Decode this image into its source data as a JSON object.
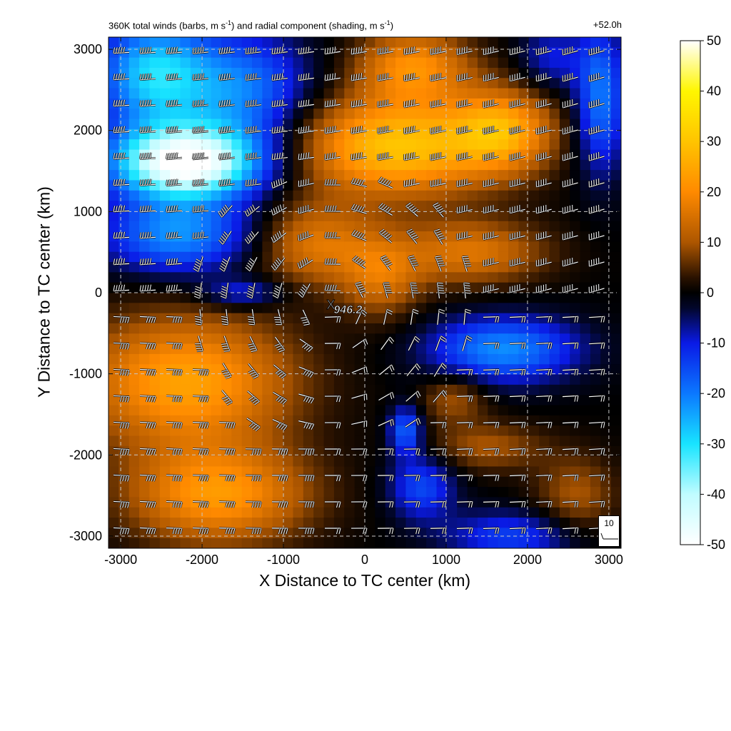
{
  "figure": {
    "title_left_parts": [
      "360K total winds (barbs, m s",
      "-1",
      ") and radial component (shading, m s",
      "-1",
      ")"
    ],
    "title_right": "+52.0h",
    "center_marker": "X",
    "center_label": "946.2",
    "reference_barb_label": "10"
  },
  "chart_data": {
    "type": "heatmap",
    "xlabel": "X Distance to TC center (km)",
    "ylabel": "Y Distance to TC center (km)",
    "xlim": [
      -3150,
      3150
    ],
    "ylim": [
      -3150,
      3150
    ],
    "xticks": [
      -3000,
      -2000,
      -1000,
      0,
      1000,
      2000,
      3000
    ],
    "yticks": [
      -3000,
      -2000,
      -1000,
      0,
      1000,
      2000,
      3000
    ],
    "grid": true,
    "colorbar": {
      "range": [
        -50,
        50
      ],
      "ticks": [
        50,
        40,
        30,
        20,
        10,
        0,
        -10,
        -20,
        -30,
        -40,
        -50
      ],
      "colors": [
        {
          "v": -50,
          "c": "#ffffff"
        },
        {
          "v": -40,
          "c": "#c0fcff"
        },
        {
          "v": -30,
          "c": "#18e4ff"
        },
        {
          "v": -20,
          "c": "#0b78ff"
        },
        {
          "v": -10,
          "c": "#0a1ae6"
        },
        {
          "v": -3,
          "c": "#02062a"
        },
        {
          "v": 0,
          "c": "#000000"
        },
        {
          "v": 3,
          "c": "#2a1200"
        },
        {
          "v": 10,
          "c": "#ad5600"
        },
        {
          "v": 20,
          "c": "#ff8a00"
        },
        {
          "v": 30,
          "c": "#ffc400"
        },
        {
          "v": 40,
          "c": "#fff600"
        },
        {
          "v": 50,
          "c": "#ffffff"
        }
      ]
    },
    "storm_center": {
      "x": -400,
      "y": -150,
      "label": "946.2"
    },
    "radial_wind_features": [
      {
        "x": -2200,
        "y": 1600,
        "sx": 900,
        "sy": 450,
        "v": -52
      },
      {
        "x": -2600,
        "y": 2700,
        "sx": 700,
        "sy": 700,
        "v": -28
      },
      {
        "x": -1500,
        "y": 2500,
        "sx": 800,
        "sy": 700,
        "v": -20
      },
      {
        "x": -2300,
        "y": 700,
        "sx": 900,
        "sy": 450,
        "v": -22
      },
      {
        "x": 400,
        "y": 1800,
        "sx": 1200,
        "sy": 600,
        "v": 30
      },
      {
        "x": 1700,
        "y": 2000,
        "sx": 600,
        "sy": 500,
        "v": 22
      },
      {
        "x": 600,
        "y": 2800,
        "sx": 700,
        "sy": 450,
        "v": 20
      },
      {
        "x": 2900,
        "y": 2400,
        "sx": 300,
        "sy": 900,
        "v": -20
      },
      {
        "x": 2300,
        "y": 2900,
        "sx": 400,
        "sy": 400,
        "v": -10
      },
      {
        "x": -2200,
        "y": -1100,
        "sx": 1300,
        "sy": 800,
        "v": 24
      },
      {
        "x": -1800,
        "y": -2500,
        "sx": 1100,
        "sy": 600,
        "v": 22
      },
      {
        "x": -600,
        "y": 600,
        "sx": 700,
        "sy": 500,
        "v": 16
      },
      {
        "x": 200,
        "y": 200,
        "sx": 500,
        "sy": 500,
        "v": 14
      },
      {
        "x": 1300,
        "y": 500,
        "sx": 900,
        "sy": 400,
        "v": 16
      },
      {
        "x": 1700,
        "y": -700,
        "sx": 900,
        "sy": 400,
        "v": -22
      },
      {
        "x": 700,
        "y": -2400,
        "sx": 400,
        "sy": 400,
        "v": -15
      },
      {
        "x": 1800,
        "y": -3000,
        "sx": 800,
        "sy": 300,
        "v": -14
      },
      {
        "x": 1500,
        "y": -1900,
        "sx": 700,
        "sy": 300,
        "v": 10
      },
      {
        "x": 2600,
        "y": -2500,
        "sx": 500,
        "sy": 500,
        "v": 10
      },
      {
        "x": -1500,
        "y": 0,
        "sx": 500,
        "sy": 180,
        "v": -12
      },
      {
        "x": 500,
        "y": -1700,
        "sx": 200,
        "sy": 300,
        "v": -18
      },
      {
        "x": 1100,
        "y": -1300,
        "sx": 400,
        "sy": 300,
        "v": 10
      }
    ]
  }
}
